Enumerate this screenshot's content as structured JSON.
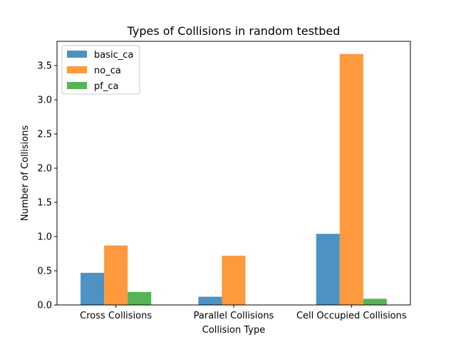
{
  "chart_data": {
    "type": "bar",
    "title": "Types of Collisions in random testbed",
    "xlabel": "Collision Type",
    "ylabel": "Number of Collisions",
    "categories": [
      "Cross Collisions",
      "Parallel Collisions",
      "Cell Occupied Collisions"
    ],
    "series": [
      {
        "name": "basic_ca",
        "color": "#1f77b4",
        "values": [
          0.47,
          0.12,
          1.04
        ]
      },
      {
        "name": "no_ca",
        "color": "#ff7f0e",
        "values": [
          0.87,
          0.72,
          3.67
        ]
      },
      {
        "name": "pf_ca",
        "color": "#2ca02c",
        "values": [
          0.19,
          0.0,
          0.09
        ]
      }
    ],
    "ylim": [
      0,
      3.855
    ],
    "yticks": [
      0.0,
      0.5,
      1.0,
      1.5,
      2.0,
      2.5,
      3.0,
      3.5
    ],
    "ytick_labels": [
      "0.0",
      "0.5",
      "1.0",
      "1.5",
      "2.0",
      "2.5",
      "3.0",
      "3.5"
    ],
    "legend_position": "top-left",
    "grid": false,
    "bar_opacity": 0.8
  }
}
